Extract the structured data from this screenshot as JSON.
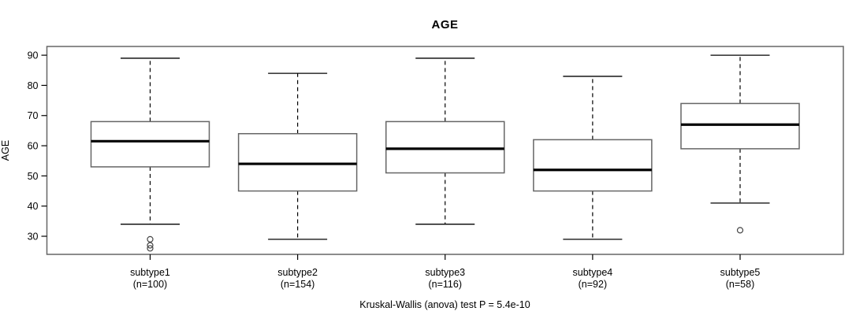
{
  "figure": {
    "title": "AGE",
    "y_axis_title": "AGE",
    "caption": "Kruskal-Wallis (anova) test P = 5.4e-10"
  },
  "chart_data": {
    "type": "boxplot",
    "title": "AGE",
    "xlabel": "",
    "ylabel": "AGE",
    "caption": "Kruskal-Wallis (anova) test P = 5.4e-10",
    "y_ticks": [
      30,
      40,
      50,
      60,
      70,
      80,
      90
    ],
    "ylim": [
      24.0,
      92.9
    ],
    "grid": false,
    "legend": "none",
    "categories": [
      "subtype1",
      "subtype2",
      "subtype3",
      "subtype4",
      "subtype5"
    ],
    "groups": [
      {
        "label": "subtype1",
        "n_label": "(n=100)",
        "n": 100,
        "whisker_low": 34,
        "q1": 53,
        "median": 61.5,
        "q3": 68,
        "whisker_high": 89,
        "outliers": [
          29,
          27,
          26
        ]
      },
      {
        "label": "subtype2",
        "n_label": "(n=154)",
        "n": 154,
        "whisker_low": 29,
        "q1": 45,
        "median": 54,
        "q3": 64,
        "whisker_high": 84,
        "outliers": []
      },
      {
        "label": "subtype3",
        "n_label": "(n=116)",
        "n": 116,
        "whisker_low": 34,
        "q1": 51,
        "median": 59,
        "q3": 68,
        "whisker_high": 89,
        "outliers": []
      },
      {
        "label": "subtype4",
        "n_label": "(n=92)",
        "n": 92,
        "whisker_low": 29,
        "q1": 45,
        "median": 52,
        "q3": 62,
        "whisker_high": 83,
        "outliers": []
      },
      {
        "label": "subtype5",
        "n_label": "(n=58)",
        "n": 58,
        "whisker_low": 41,
        "q1": 59,
        "median": 67,
        "q3": 74,
        "whisker_high": 90,
        "outliers": [
          32
        ]
      }
    ],
    "colors": {
      "background": "#ffffff",
      "frame": "#666666",
      "box_border": "#666666",
      "box_fill": "#ffffff",
      "median": "#000000",
      "whisker": "#000000",
      "tick": "#000000",
      "text": "#000000",
      "outlier": "#444444"
    }
  }
}
